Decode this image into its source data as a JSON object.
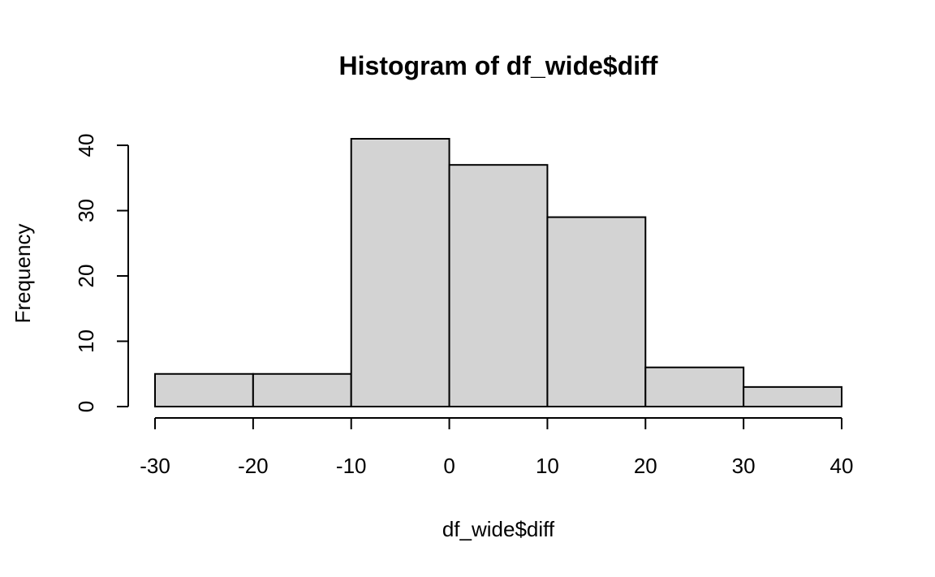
{
  "chart_data": {
    "type": "bar",
    "title": "Histogram of df_wide$diff",
    "xlabel": "df_wide$diff",
    "ylabel": "Frequency",
    "bins": [
      {
        "from": -30,
        "to": -20,
        "count": 5
      },
      {
        "from": -20,
        "to": -10,
        "count": 5
      },
      {
        "from": -10,
        "to": 0,
        "count": 41
      },
      {
        "from": 0,
        "to": 10,
        "count": 37
      },
      {
        "from": 10,
        "to": 20,
        "count": 29
      },
      {
        "from": 20,
        "to": 30,
        "count": 6
      },
      {
        "from": 30,
        "to": 40,
        "count": 3
      }
    ],
    "xticks": [
      -30,
      -20,
      -10,
      0,
      10,
      20,
      30,
      40
    ],
    "yticks": [
      0,
      10,
      20,
      30,
      40
    ],
    "xlim": [
      -30,
      40
    ],
    "ylim": [
      0,
      41
    ],
    "bar_color": "#d3d3d3",
    "grid": false
  }
}
